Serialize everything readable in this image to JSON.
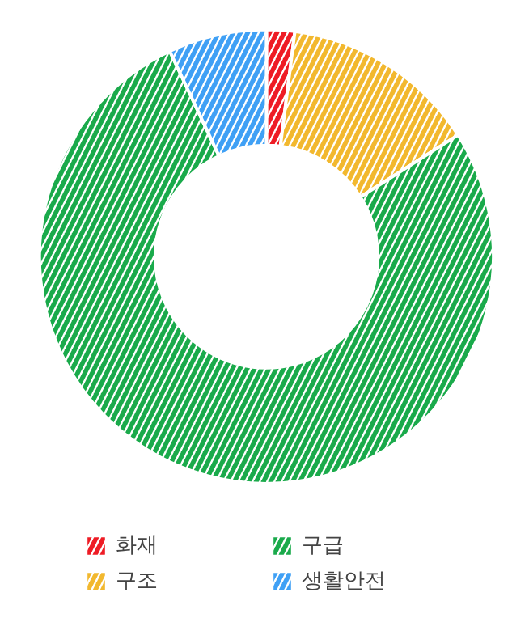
{
  "chart_data": {
    "type": "donut",
    "categories": [
      "화재",
      "구조",
      "구급",
      "생활안전"
    ],
    "values": [
      2,
      14,
      77,
      7
    ],
    "colors": [
      "#ee1c25",
      "#f2b82e",
      "#1aaa4b",
      "#3fa0f5"
    ],
    "legend": "bottom"
  }
}
